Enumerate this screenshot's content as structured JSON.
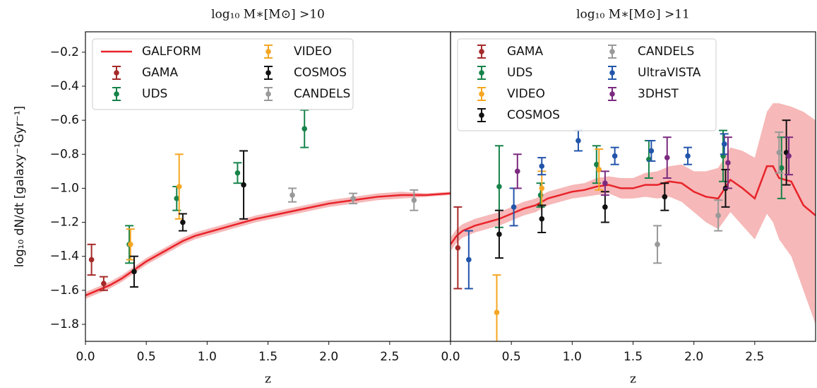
{
  "chart_data": [
    {
      "type": "errorbar",
      "title": "log₁₀ M∗[M⊙] >10",
      "xlabel": "z",
      "ylabel": "log₁₀ dN/dt [galaxy⁻¹Gyr⁻¹]",
      "xlim": [
        0,
        3
      ],
      "ylim": [
        -1.9,
        -0.08
      ],
      "xticks": [
        {
          "value": 0,
          "label": "0.0"
        },
        0.5,
        {
          "value": 1,
          "label": "1.0"
        },
        1.5,
        {
          "value": 2,
          "label": "2.0"
        },
        2.5
      ],
      "yticks": [
        {
          "value": -0.2,
          "label": "−0.2"
        },
        {
          "value": -0.4,
          "label": "−0.4"
        },
        {
          "value": -0.6,
          "label": "−0.6"
        },
        {
          "value": -0.8,
          "label": "−0.8"
        },
        {
          "value": -1.0,
          "label": "−1.0"
        },
        {
          "value": -1.2,
          "label": "−1.2"
        },
        {
          "value": -1.4,
          "label": "−1.4"
        },
        {
          "value": -1.6,
          "label": "−1.6"
        },
        {
          "value": -1.8,
          "label": "−1.8"
        }
      ],
      "legend": "upper left",
      "legend_columns": 2,
      "series": [
        {
          "name": "GALFORM",
          "kind": "line",
          "color": "#e8232a",
          "band_color": "#f6b8b8",
          "x": [
            0,
            0.1,
            0.2,
            0.3,
            0.4,
            0.5,
            0.6,
            0.7,
            0.8,
            0.9,
            1.0,
            1.2,
            1.4,
            1.6,
            1.8,
            2.0,
            2.2,
            2.4,
            2.6,
            2.8,
            3.0
          ],
          "values": [
            -1.63,
            -1.6,
            -1.57,
            -1.53,
            -1.48,
            -1.43,
            -1.39,
            -1.35,
            -1.31,
            -1.28,
            -1.26,
            -1.22,
            -1.18,
            -1.15,
            -1.12,
            -1.09,
            -1.07,
            -1.05,
            -1.04,
            -1.04,
            -1.03
          ],
          "lower": [
            -1.65,
            -1.62,
            -1.59,
            -1.55,
            -1.5,
            -1.45,
            -1.41,
            -1.37,
            -1.33,
            -1.3,
            -1.28,
            -1.24,
            -1.2,
            -1.17,
            -1.14,
            -1.11,
            -1.09,
            -1.07,
            -1.06,
            -1.05,
            -1.04
          ],
          "upper": [
            -1.61,
            -1.58,
            -1.55,
            -1.51,
            -1.46,
            -1.41,
            -1.37,
            -1.33,
            -1.29,
            -1.26,
            -1.24,
            -1.2,
            -1.16,
            -1.13,
            -1.1,
            -1.07,
            -1.05,
            -1.03,
            -1.02,
            -1.03,
            -1.02
          ]
        },
        {
          "name": "GAMA",
          "kind": "errorbar",
          "color": "#a52a2a",
          "x": [
            0.05,
            0.15
          ],
          "values": [
            -1.42,
            -1.56
          ],
          "errors": [
            0.09,
            0.04
          ]
        },
        {
          "name": "UDS",
          "kind": "errorbar",
          "color": "#17834a",
          "x": [
            0.36,
            0.75,
            1.25,
            1.8
          ],
          "values": [
            -1.33,
            -1.06,
            -0.91,
            -0.65
          ],
          "errors": [
            0.11,
            0.07,
            0.06,
            0.11
          ]
        },
        {
          "name": "VIDEO",
          "kind": "errorbar",
          "color": "#f5a623",
          "x": [
            0.37,
            0.77
          ],
          "values": [
            -1.33,
            -0.99
          ],
          "errors": [
            0.09,
            0.19
          ]
        },
        {
          "name": "COSMOS",
          "kind": "errorbar",
          "color": "#111111",
          "x": [
            0.4,
            0.8,
            1.3
          ],
          "values": [
            -1.49,
            -1.2,
            -0.98
          ],
          "errors": [
            0.09,
            0.05,
            0.2
          ]
        },
        {
          "name": "CANDELS",
          "kind": "errorbar",
          "color": "#999999",
          "x": [
            1.7,
            2.2,
            2.7
          ],
          "values": [
            -1.04,
            -1.06,
            -1.07
          ],
          "errors": [
            0.04,
            0.03,
            0.06
          ]
        }
      ]
    },
    {
      "type": "errorbar",
      "title": "log₁₀ M∗[M⊙] >11",
      "xlabel": "z",
      "xlim": [
        0,
        3
      ],
      "ylim": [
        -1.9,
        -0.08
      ],
      "xticks": [
        {
          "value": 0,
          "label": "0.0"
        },
        0.5,
        {
          "value": 1,
          "label": "1.0"
        },
        1.5,
        {
          "value": 2,
          "label": "2.0"
        },
        2.5
      ],
      "legend": "upper left",
      "legend_columns": 2,
      "series": [
        {
          "kind": "line",
          "color": "#e8232a",
          "band_color": "#f6b8b8",
          "x": [
            0,
            0.05,
            0.1,
            0.2,
            0.3,
            0.4,
            0.5,
            0.6,
            0.7,
            0.8,
            0.9,
            1.0,
            1.1,
            1.2,
            1.3,
            1.4,
            1.5,
            1.6,
            1.7,
            1.8,
            1.9,
            2.0,
            2.1,
            2.2,
            2.3,
            2.4,
            2.5,
            2.6,
            2.65,
            2.7,
            2.8,
            2.9,
            3.0
          ],
          "values": [
            -1.33,
            -1.28,
            -1.25,
            -1.22,
            -1.2,
            -1.18,
            -1.15,
            -1.12,
            -1.1,
            -1.06,
            -1.04,
            -1.02,
            -1.01,
            -0.99,
            -0.98,
            -1.0,
            -1.0,
            -0.98,
            -0.98,
            -0.96,
            -0.97,
            -1.02,
            -1.05,
            -1.06,
            -0.95,
            -1.0,
            -1.06,
            -0.87,
            -0.87,
            -0.94,
            -0.96,
            -1.1,
            -1.16
          ],
          "lower": [
            -1.37,
            -1.32,
            -1.29,
            -1.26,
            -1.24,
            -1.22,
            -1.19,
            -1.16,
            -1.14,
            -1.1,
            -1.08,
            -1.06,
            -1.05,
            -1.04,
            -1.03,
            -1.06,
            -1.06,
            -1.05,
            -1.06,
            -1.05,
            -1.08,
            -1.14,
            -1.2,
            -1.24,
            -1.14,
            -1.22,
            -1.3,
            -1.15,
            -1.2,
            -1.3,
            -1.4,
            -1.6,
            -1.8
          ],
          "upper": [
            -1.29,
            -1.24,
            -1.21,
            -1.18,
            -1.16,
            -1.14,
            -1.11,
            -1.08,
            -1.06,
            -1.02,
            -1.0,
            -0.98,
            -0.97,
            -0.94,
            -0.93,
            -0.94,
            -0.94,
            -0.91,
            -0.9,
            -0.87,
            -0.86,
            -0.9,
            -0.9,
            -0.88,
            -0.76,
            -0.78,
            -0.82,
            -0.55,
            -0.5,
            -0.5,
            -0.52,
            -0.55,
            -0.6
          ]
        },
        {
          "name": "GAMA",
          "kind": "errorbar",
          "color": "#a52a2a",
          "x": [
            0.06
          ],
          "values": [
            -1.35
          ],
          "errors": [
            0.24
          ]
        },
        {
          "name": "UDS",
          "kind": "errorbar",
          "color": "#17834a",
          "x": [
            0.4,
            0.74,
            1.2,
            1.63,
            2.24,
            2.72
          ],
          "values": [
            -0.99,
            -1.04,
            -0.86,
            -0.83,
            -0.81,
            -0.88
          ],
          "errors": [
            0.24,
            0.07,
            0.11,
            0.11,
            0.15,
            0.18
          ]
        },
        {
          "name": "VIDEO",
          "kind": "errorbar",
          "color": "#f5a623",
          "x": [
            0.38,
            0.75,
            1.22
          ],
          "values": [
            -1.73,
            -1.0,
            -0.89
          ],
          "errors": [
            0.22,
            0.1,
            0.12
          ]
        },
        {
          "name": "COSMOS",
          "kind": "errorbar",
          "color": "#111111",
          "x": [
            0.4,
            0.75,
            1.27,
            1.76,
            2.26,
            2.76
          ],
          "values": [
            -1.27,
            -1.18,
            -1.11,
            -1.05,
            -1.0,
            -0.79
          ],
          "errors": [
            0.14,
            0.08,
            0.09,
            0.08,
            0.11,
            0.19
          ]
        },
        {
          "name": "CANDELS",
          "kind": "errorbar",
          "color": "#999999",
          "x": [
            1.7,
            2.2,
            2.7
          ],
          "values": [
            -1.33,
            -1.16,
            -0.79
          ],
          "errors": [
            0.11,
            0.09,
            0.12
          ]
        },
        {
          "name": "UltraVISTA",
          "kind": "errorbar",
          "color": "#2255aa",
          "x": [
            0.15,
            0.52,
            0.75,
            1.05,
            1.35,
            1.65,
            1.95,
            2.25
          ],
          "values": [
            -1.42,
            -1.11,
            -0.87,
            -0.72,
            -0.81,
            -0.78,
            -0.81,
            -0.74
          ],
          "errors": [
            0.17,
            0.11,
            0.05,
            0.06,
            0.05,
            0.06,
            0.05,
            0.06
          ]
        },
        {
          "name": "3DHST",
          "kind": "errorbar",
          "color": "#7b2a7f",
          "x": [
            0.55,
            1.27,
            1.78,
            2.28,
            2.78
          ],
          "values": [
            -0.9,
            -0.97,
            -0.82,
            -0.85,
            -0.81
          ],
          "errors": [
            0.1,
            0.07,
            0.12,
            0.15,
            0.11
          ]
        }
      ]
    }
  ]
}
